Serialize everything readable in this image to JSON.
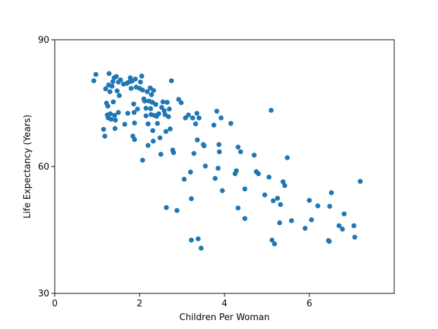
{
  "chart_data": {
    "type": "scatter",
    "title": "",
    "xlabel": "Children Per Woman",
    "ylabel": "Life Expectancy (Years)",
    "xlim": [
      0,
      8
    ],
    "ylim": [
      30,
      90
    ],
    "xticks": [
      0,
      2,
      4,
      6
    ],
    "yticks": [
      30,
      60,
      90
    ],
    "grid": false,
    "marker_color": "#1f77b4",
    "series": [
      {
        "points": [
          [
            0.92,
            80.3
          ],
          [
            0.97,
            81.8
          ],
          [
            1.15,
            68.8
          ],
          [
            1.18,
            67.2
          ],
          [
            1.2,
            78.4
          ],
          [
            1.22,
            75.0
          ],
          [
            1.24,
            72.2
          ],
          [
            1.25,
            74.3
          ],
          [
            1.26,
            71.5
          ],
          [
            1.27,
            79.3
          ],
          [
            1.28,
            82.0
          ],
          [
            1.3,
            77.7
          ],
          [
            1.31,
            72.5
          ],
          [
            1.33,
            71.2
          ],
          [
            1.35,
            79.0
          ],
          [
            1.37,
            80.1
          ],
          [
            1.38,
            75.3
          ],
          [
            1.4,
            81.0
          ],
          [
            1.41,
            72.1
          ],
          [
            1.42,
            69.0
          ],
          [
            1.43,
            71.0
          ],
          [
            1.45,
            81.3
          ],
          [
            1.47,
            77.9
          ],
          [
            1.5,
            80.0
          ],
          [
            1.5,
            72.8
          ],
          [
            1.52,
            76.8
          ],
          [
            1.55,
            80.5
          ],
          [
            1.62,
            79.5
          ],
          [
            1.65,
            70.0
          ],
          [
            1.7,
            79.7
          ],
          [
            1.72,
            72.6
          ],
          [
            1.75,
            80.0
          ],
          [
            1.78,
            81.0
          ],
          [
            1.8,
            78.5
          ],
          [
            1.82,
            80.2
          ],
          [
            1.84,
            67.2
          ],
          [
            1.86,
            74.8
          ],
          [
            1.87,
            72.8
          ],
          [
            1.88,
            66.4
          ],
          [
            1.88,
            70.3
          ],
          [
            1.9,
            80.7
          ],
          [
            1.92,
            78.8
          ],
          [
            1.95,
            73.6
          ],
          [
            2.0,
            78.5
          ],
          [
            2.02,
            80.0
          ],
          [
            2.05,
            81.4
          ],
          [
            2.07,
            61.5
          ],
          [
            2.07,
            78.1
          ],
          [
            2.1,
            76.0
          ],
          [
            2.12,
            75.5
          ],
          [
            2.15,
            72.0
          ],
          [
            2.15,
            73.8
          ],
          [
            2.18,
            77.7
          ],
          [
            2.2,
            70.1
          ],
          [
            2.2,
            65.0
          ],
          [
            2.22,
            75.5
          ],
          [
            2.25,
            78.6
          ],
          [
            2.26,
            73.7
          ],
          [
            2.27,
            72.3
          ],
          [
            2.28,
            77.0
          ],
          [
            2.3,
            75.2
          ],
          [
            2.31,
            68.5
          ],
          [
            2.32,
            66.0
          ],
          [
            2.33,
            78.0
          ],
          [
            2.35,
            72.1
          ],
          [
            2.38,
            74.7
          ],
          [
            2.4,
            71.9
          ],
          [
            2.42,
            70.2
          ],
          [
            2.45,
            72.5
          ],
          [
            2.48,
            66.8
          ],
          [
            2.5,
            62.9
          ],
          [
            2.52,
            74.0
          ],
          [
            2.55,
            75.3
          ],
          [
            2.58,
            73.2
          ],
          [
            2.6,
            72.3
          ],
          [
            2.62,
            68.3
          ],
          [
            2.63,
            50.3
          ],
          [
            2.65,
            75.2
          ],
          [
            2.68,
            71.8
          ],
          [
            2.7,
            73.6
          ],
          [
            2.72,
            68.9
          ],
          [
            2.75,
            80.3
          ],
          [
            2.78,
            63.9
          ],
          [
            2.8,
            63.3
          ],
          [
            2.88,
            49.6
          ],
          [
            2.92,
            75.9
          ],
          [
            2.98,
            75.1
          ],
          [
            3.05,
            57.0
          ],
          [
            3.08,
            71.5
          ],
          [
            3.15,
            72.2
          ],
          [
            3.2,
            58.7
          ],
          [
            3.22,
            52.4
          ],
          [
            3.22,
            42.6
          ],
          [
            3.25,
            71.5
          ],
          [
            3.28,
            63.1
          ],
          [
            3.32,
            70.1
          ],
          [
            3.35,
            72.6
          ],
          [
            3.36,
            66.3
          ],
          [
            3.38,
            42.9
          ],
          [
            3.4,
            71.5
          ],
          [
            3.45,
            40.7
          ],
          [
            3.5,
            65.2
          ],
          [
            3.52,
            64.9
          ],
          [
            3.55,
            60.1
          ],
          [
            3.75,
            69.8
          ],
          [
            3.78,
            57.2
          ],
          [
            3.82,
            73.1
          ],
          [
            3.85,
            59.6
          ],
          [
            3.87,
            65.2
          ],
          [
            3.88,
            63.5
          ],
          [
            3.92,
            71.5
          ],
          [
            3.95,
            54.3
          ],
          [
            4.15,
            70.2
          ],
          [
            4.25,
            58.3
          ],
          [
            4.28,
            59.0
          ],
          [
            4.32,
            64.6
          ],
          [
            4.32,
            50.2
          ],
          [
            4.38,
            63.5
          ],
          [
            4.48,
            47.7
          ],
          [
            4.48,
            54.7
          ],
          [
            4.7,
            62.7
          ],
          [
            4.75,
            58.8
          ],
          [
            4.8,
            58.3
          ],
          [
            4.95,
            53.3
          ],
          [
            5.05,
            57.5
          ],
          [
            5.1,
            73.3
          ],
          [
            5.12,
            42.6
          ],
          [
            5.15,
            51.9
          ],
          [
            5.18,
            41.7
          ],
          [
            5.25,
            52.5
          ],
          [
            5.3,
            46.7
          ],
          [
            5.32,
            51.0
          ],
          [
            5.38,
            56.4
          ],
          [
            5.42,
            55.5
          ],
          [
            5.48,
            62.1
          ],
          [
            5.58,
            47.2
          ],
          [
            5.9,
            45.4
          ],
          [
            6.0,
            52.0
          ],
          [
            6.05,
            47.4
          ],
          [
            6.2,
            50.7
          ],
          [
            6.45,
            42.5
          ],
          [
            6.47,
            42.3
          ],
          [
            6.48,
            50.6
          ],
          [
            6.52,
            53.8
          ],
          [
            6.7,
            46.0
          ],
          [
            6.78,
            45.2
          ],
          [
            6.82,
            48.8
          ],
          [
            7.05,
            46.0
          ],
          [
            7.07,
            43.3
          ],
          [
            7.2,
            56.5
          ]
        ]
      }
    ]
  }
}
